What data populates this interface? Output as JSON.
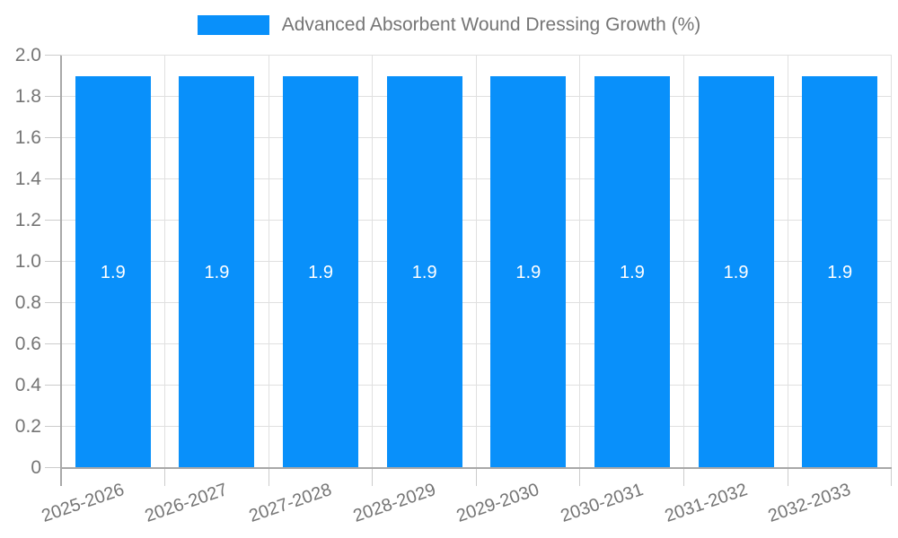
{
  "legend": {
    "label": "Advanced Absorbent Wound Dressing Growth (%)"
  },
  "chart_data": {
    "type": "bar",
    "title": "Advanced Absorbent Wound Dressing Growth (%)",
    "series_name": "Advanced Absorbent Wound Dressing Growth (%)",
    "categories": [
      "2025-2026",
      "2026-2027",
      "2027-2028",
      "2028-2029",
      "2029-2030",
      "2030-2031",
      "2031-2032",
      "2032-2033"
    ],
    "values": [
      1.9,
      1.9,
      1.9,
      1.9,
      1.9,
      1.9,
      1.9,
      1.9
    ],
    "bar_labels": [
      "1.9",
      "1.9",
      "1.9",
      "1.9",
      "1.9",
      "1.9",
      "1.9",
      "1.9"
    ],
    "xlabel": "",
    "ylabel": "",
    "ylim": [
      0,
      2.0
    ],
    "ytick_step": 0.2,
    "yticks": [
      "0",
      "0.2",
      "0.4",
      "0.6",
      "0.8",
      "1.0",
      "1.2",
      "1.4",
      "1.6",
      "1.8",
      "2.0"
    ],
    "grid": true,
    "legend_position": "top-center",
    "colors": {
      "bar": "#0990fa",
      "bar_label": "#ffffff",
      "grid_line": "#e0e0e0",
      "axis_line": "#a8a8a8",
      "tick_mark": "#cccccc",
      "tick_text": "#757575",
      "legend_text": "#757575",
      "background": "#ffffff"
    }
  }
}
